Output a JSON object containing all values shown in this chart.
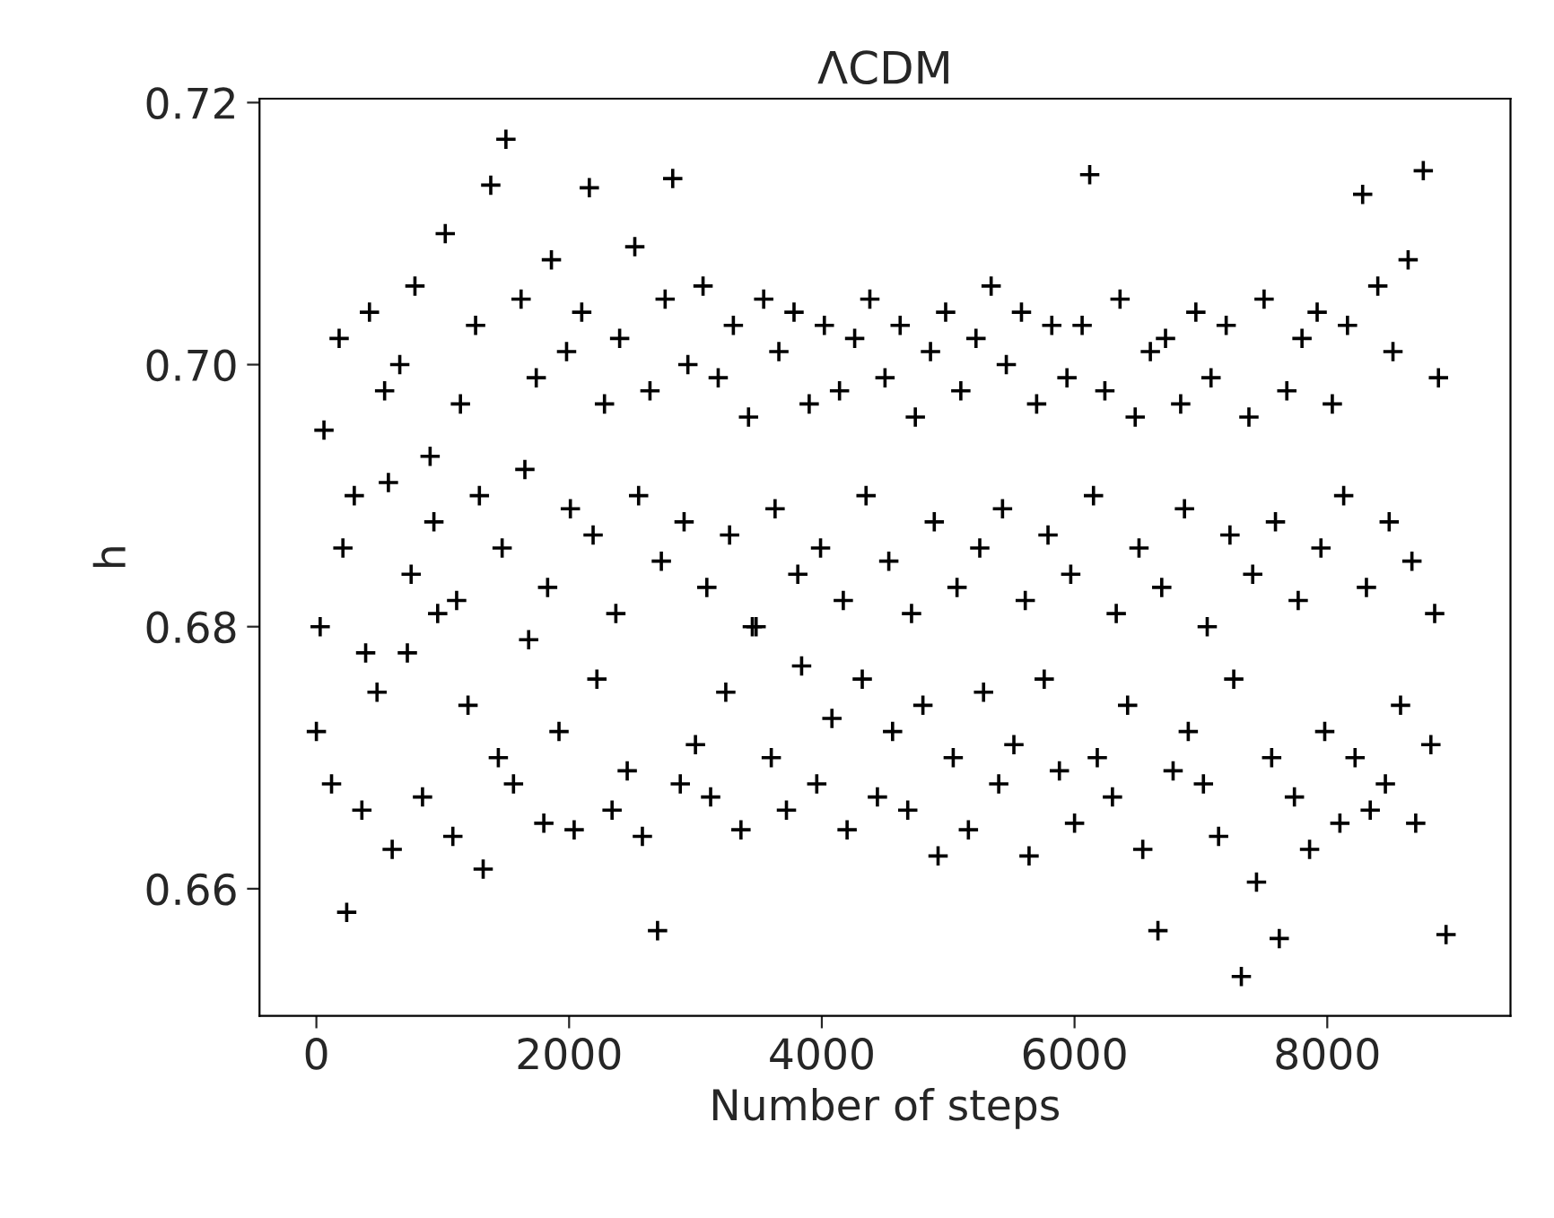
{
  "chart_data": {
    "type": "scatter",
    "title": "ΛCDM",
    "xlabel": "Number of steps",
    "ylabel": "h",
    "xlim": [
      -450,
      9450
    ],
    "ylim": [
      0.6503,
      0.7203
    ],
    "xticks": [
      0,
      2000,
      4000,
      6000,
      8000
    ],
    "yticks": [
      {
        "value": 0.66,
        "label": "0.66"
      },
      {
        "value": 0.68,
        "label": "0.68"
      },
      {
        "value": 0.7,
        "label": "0.70"
      },
      {
        "value": 0.72,
        "label": "0.72"
      }
    ],
    "marker": "cross",
    "grid": false,
    "legend": false,
    "series": [
      {
        "color": "#000000",
        "x": [
          0,
          60,
          120,
          180,
          240,
          300,
          360,
          420,
          480,
          540,
          600,
          660,
          720,
          780,
          840,
          900,
          960,
          1020,
          1080,
          1140,
          1200,
          1260,
          1320,
          1380,
          1440,
          1500,
          1560,
          1620,
          1680,
          1740,
          1800,
          1860,
          1920,
          1980,
          2040,
          2100,
          2160,
          2220,
          2280,
          2340,
          2400,
          2460,
          2520,
          2580,
          2640,
          2700,
          2760,
          2820,
          2880,
          2940,
          3000,
          3060,
          3120,
          3180,
          3240,
          3300,
          3360,
          3420,
          3480,
          3540,
          3600,
          3660,
          3720,
          3780,
          3840,
          3900,
          3960,
          4020,
          4080,
          4140,
          4200,
          4260,
          4320,
          4380,
          4440,
          4500,
          4560,
          4620,
          4680,
          4740,
          4800,
          4860,
          4920,
          4980,
          5040,
          5100,
          5160,
          5220,
          5280,
          5340,
          5400,
          5460,
          5520,
          5580,
          5640,
          5700,
          5760,
          5820,
          5880,
          5940,
          6000,
          6060,
          6120,
          6180,
          6240,
          6300,
          6360,
          6420,
          6480,
          6540,
          6600,
          6660,
          6720,
          6780,
          6840,
          6900,
          6960,
          7020,
          7080,
          7140,
          7200,
          7260,
          7320,
          7380,
          7440,
          7500,
          7560,
          7620,
          7680,
          7740,
          7800,
          7860,
          7920,
          7980,
          8040,
          8100,
          8160,
          8220,
          8280,
          8340,
          8400,
          8460,
          8520,
          8580,
          8640,
          8700,
          8760,
          8820,
          8880,
          8940
        ],
        "values": [
          0.672,
          0.695,
          0.668,
          0.702,
          0.6582,
          0.69,
          0.666,
          0.704,
          0.675,
          0.698,
          0.663,
          0.7,
          0.678,
          0.706,
          0.667,
          0.693,
          0.681,
          0.71,
          0.664,
          0.697,
          0.674,
          0.703,
          0.6615,
          0.7137,
          0.67,
          0.7172,
          0.668,
          0.705,
          0.679,
          0.699,
          0.665,
          0.708,
          0.672,
          0.701,
          0.6645,
          0.704,
          0.7135,
          0.676,
          0.697,
          0.666,
          0.702,
          0.669,
          0.709,
          0.664,
          0.698,
          0.6568,
          0.705,
          0.7142,
          0.668,
          0.7,
          0.671,
          0.706,
          0.667,
          0.699,
          0.675,
          0.703,
          0.6645,
          0.696,
          0.68,
          0.705,
          0.67,
          0.701,
          0.666,
          0.704,
          0.677,
          0.697,
          0.668,
          0.703,
          0.673,
          0.698,
          0.6645,
          0.702,
          0.676,
          0.705,
          0.667,
          0.699,
          0.672,
          0.703,
          0.666,
          0.696,
          0.674,
          0.701,
          0.6625,
          0.704,
          0.67,
          0.698,
          0.6645,
          0.702,
          0.675,
          0.706,
          0.668,
          0.7,
          0.671,
          0.704,
          0.6625,
          0.697,
          0.676,
          0.703,
          0.669,
          0.699,
          0.665,
          0.703,
          0.7145,
          0.67,
          0.698,
          0.667,
          0.705,
          0.674,
          0.696,
          0.663,
          0.701,
          0.6568,
          0.702,
          0.669,
          0.697,
          0.672,
          0.704,
          0.668,
          0.699,
          0.664,
          0.703,
          0.676,
          0.6533,
          0.696,
          0.6605,
          0.705,
          0.67,
          0.6562,
          0.698,
          0.667,
          0.702,
          0.663,
          0.704,
          0.672,
          0.697,
          0.665,
          0.703,
          0.67,
          0.713,
          0.666,
          0.706,
          0.668,
          0.701,
          0.674,
          0.708,
          0.665,
          0.7148,
          0.671,
          0.699,
          0.6565
        ]
      },
      {
        "color": "#000000",
        "x": [
          30,
          210,
          390,
          570,
          750,
          930,
          1110,
          1290,
          1470,
          1650,
          1830,
          2010,
          2190,
          2370,
          2550,
          2730,
          2910,
          3090,
          3270,
          3450,
          3630,
          3810,
          3990,
          4170,
          4350,
          4530,
          4710,
          4890,
          5070,
          5250,
          5430,
          5610,
          5790,
          5970,
          6150,
          6330,
          6510,
          6690,
          6870,
          7050,
          7230,
          7410,
          7590,
          7770,
          7950,
          8130,
          8310,
          8490,
          8670,
          8850
        ],
        "values": [
          0.68,
          0.686,
          0.678,
          0.691,
          0.684,
          0.688,
          0.682,
          0.69,
          0.686,
          0.692,
          0.683,
          0.689,
          0.687,
          0.681,
          0.69,
          0.685,
          0.688,
          0.683,
          0.687,
          0.68,
          0.689,
          0.684,
          0.686,
          0.682,
          0.69,
          0.685,
          0.681,
          0.688,
          0.683,
          0.686,
          0.689,
          0.682,
          0.687,
          0.684,
          0.69,
          0.681,
          0.686,
          0.683,
          0.689,
          0.68,
          0.687,
          0.684,
          0.688,
          0.682,
          0.686,
          0.69,
          0.683,
          0.688,
          0.685,
          0.681
        ]
      }
    ]
  }
}
